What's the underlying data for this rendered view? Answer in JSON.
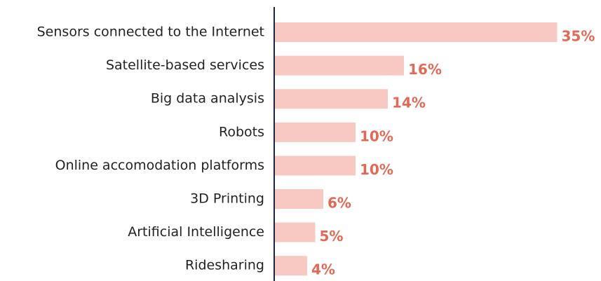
{
  "chart_data": {
    "type": "bar",
    "orientation": "horizontal",
    "categories": [
      "Sensors connected to the Internet",
      "Satellite-based services",
      "Big data analysis",
      "Robots",
      "Online accomodation platforms",
      "3D Printing",
      "Artificial Intelligence",
      "Ridesharing"
    ],
    "values": [
      35,
      16,
      14,
      10,
      10,
      6,
      5,
      4
    ],
    "value_labels": [
      "35%",
      "16%",
      "14%",
      "10%",
      "10%",
      "6%",
      "5%",
      "4%"
    ],
    "color": "#f8c9c3",
    "label_color": "#e06a55"
  }
}
